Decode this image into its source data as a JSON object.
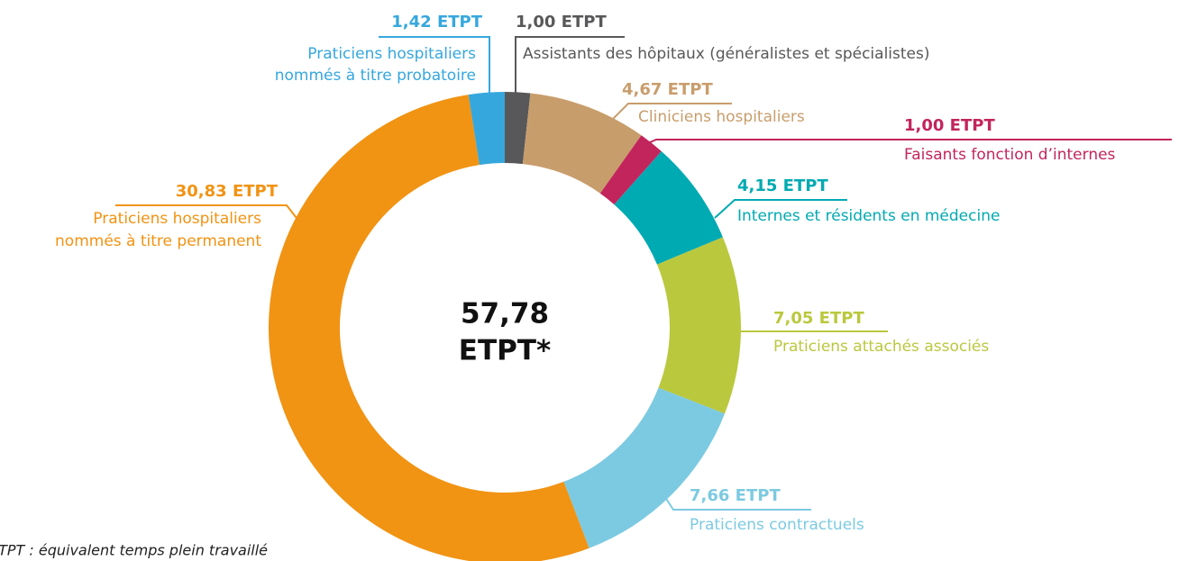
{
  "chart_data": {
    "type": "donut",
    "categories": [
      [
        "Assistants des hôpitaux (généralistes et spécialistes)"
      ],
      [
        "Cliniciens hospitaliers"
      ],
      [
        "Faisants fonction d’internes"
      ],
      [
        "Internes et résidents en médecine"
      ],
      [
        "Praticiens attachés associés"
      ],
      [
        "Praticiens contractuels"
      ],
      [
        "Praticiens hospitaliers",
        "nommés à titre permanent"
      ],
      [
        "Praticiens hospitaliers",
        "nommés à titre probatoire"
      ]
    ],
    "values": [
      1.0,
      4.67,
      1.0,
      4.15,
      7.05,
      7.66,
      30.83,
      1.42
    ],
    "value_labels": [
      "1,00 ETPT",
      "4,67 ETPT",
      "1,00 ETPT",
      "4,15 ETPT",
      "7,05 ETPT",
      "7,66 ETPT",
      "30,83 ETPT",
      "1,42 ETPT"
    ],
    "colors": [
      "#58585a",
      "#c89d6c",
      "#c2255c",
      "#00aab2",
      "#bac83e",
      "#7ccae1",
      "#f19313",
      "#36a7dd"
    ],
    "center_label": [
      "57,78",
      "ETPT*"
    ],
    "footnote": "*ETPT : équivalent temps plein travaillé"
  }
}
